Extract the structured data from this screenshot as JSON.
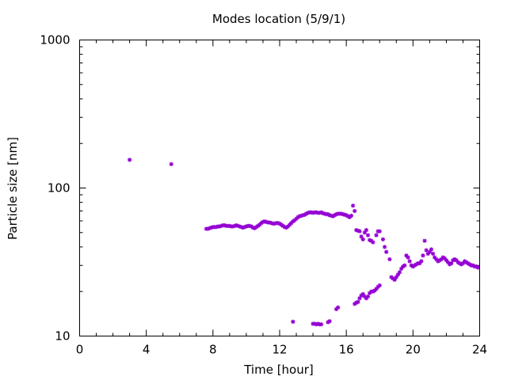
{
  "chart_data": {
    "type": "scatter",
    "title": "Modes location (5/9/1)",
    "xlabel": "Time [hour]",
    "ylabel": "Particle size [nm]",
    "xlim": [
      0,
      24
    ],
    "ylim": [
      10,
      1000
    ],
    "yscale": "log",
    "grid": false,
    "legend": "none",
    "x_ticks": [
      0,
      4,
      8,
      12,
      16,
      20,
      24
    ],
    "x_tick_labels": [
      "0",
      "4",
      "8",
      "12",
      "16",
      "20",
      "24"
    ],
    "y_ticks": [
      10,
      100,
      1000
    ],
    "y_tick_labels": [
      "10",
      "100",
      "1000"
    ],
    "marker_color": "#9400d3",
    "series": [
      {
        "x": [
          3.0,
          5.5,
          7.6,
          7.7,
          7.8,
          7.9,
          8.0,
          8.1,
          8.2,
          8.3,
          8.4,
          8.5,
          8.6,
          8.7,
          8.8,
          8.9,
          9.0,
          9.1,
          9.2,
          9.3,
          9.4,
          9.5,
          9.6,
          9.7,
          9.8,
          9.9,
          10.0,
          10.1,
          10.2,
          10.3,
          10.4,
          10.5,
          10.6,
          10.7,
          10.8,
          10.9,
          11.0,
          11.1,
          11.2,
          11.3,
          11.4,
          11.5,
          11.6,
          11.7,
          11.8,
          11.9,
          12.0,
          12.1,
          12.2,
          12.3,
          12.4,
          12.5,
          12.6,
          12.7,
          12.8,
          12.9,
          13.0,
          13.1,
          13.2,
          13.3,
          13.4,
          13.5,
          13.6,
          13.7,
          13.8,
          13.9,
          14.0,
          14.1,
          14.2,
          14.3,
          14.4,
          14.5,
          14.6,
          14.7,
          14.8,
          14.9,
          15.0,
          15.1,
          15.2,
          15.3,
          15.4,
          15.5,
          15.6,
          15.7,
          15.8,
          15.9,
          16.0,
          16.1,
          16.2,
          16.3,
          16.4,
          16.5,
          16.6,
          16.7,
          16.8,
          16.9,
          17.0,
          17.1,
          17.2,
          17.3,
          17.4,
          17.5,
          17.6,
          17.8,
          17.9,
          18.0,
          18.2,
          18.3,
          18.4,
          18.6,
          18.7,
          18.8,
          18.9,
          19.0,
          19.1,
          19.2,
          19.3,
          19.4,
          19.5,
          19.6,
          19.7,
          19.8,
          19.9,
          20.0,
          20.1,
          20.2,
          20.3,
          20.4,
          20.5,
          20.6,
          20.7,
          20.8,
          20.9,
          21.0,
          21.1,
          21.2,
          21.3,
          21.4,
          21.5,
          21.6,
          21.7,
          21.8,
          21.9,
          22.0,
          22.1,
          22.2,
          22.3,
          22.4,
          22.5,
          22.6,
          22.7,
          22.8,
          22.9,
          23.0,
          23.1,
          23.2,
          23.3,
          23.4,
          23.5,
          23.6,
          23.7,
          23.8,
          23.9,
          12.8,
          14.0,
          14.1,
          14.2,
          14.3,
          14.4,
          14.5,
          14.9,
          15.0,
          15.4,
          15.5,
          16.5,
          16.6,
          16.7,
          16.8,
          16.9,
          17.0,
          17.1,
          17.2,
          17.3,
          17.4,
          17.5,
          17.6,
          17.7,
          17.8,
          17.9,
          18.0
        ],
        "y": [
          155,
          145,
          53,
          53,
          53.5,
          54,
          54.5,
          54.5,
          54.5,
          55,
          55,
          55.5,
          56,
          56,
          55.5,
          55.5,
          55.5,
          55,
          55,
          55.5,
          56,
          55.5,
          55,
          54.5,
          54,
          54.5,
          55,
          55.5,
          55.5,
          55,
          54,
          53.5,
          54.5,
          55.5,
          56.5,
          58,
          59,
          59.5,
          59,
          58.5,
          58.5,
          58,
          57.5,
          57.5,
          58,
          58,
          57.5,
          56.5,
          55.5,
          54.5,
          54,
          55,
          56.5,
          58,
          59.5,
          60.5,
          62,
          63.5,
          64.5,
          65,
          65.5,
          66,
          67,
          68,
          68.5,
          68.5,
          68,
          68.5,
          68.5,
          68,
          68,
          68.5,
          67.5,
          67,
          66.5,
          66.5,
          65.5,
          65,
          64.5,
          65.5,
          66.5,
          67,
          67,
          67,
          66.5,
          66,
          65.5,
          64.5,
          63.5,
          65,
          76,
          70,
          52,
          51.5,
          51,
          47,
          45,
          50,
          52,
          48,
          44.5,
          44,
          43,
          48,
          51,
          51,
          45,
          40,
          37,
          33,
          25,
          24.5,
          24,
          25,
          26,
          27,
          28.5,
          29.5,
          30,
          35,
          34,
          32,
          30,
          29.5,
          30,
          30.5,
          31,
          31,
          32,
          35,
          44,
          38,
          36,
          37,
          38.5,
          36,
          34,
          33,
          32,
          32.5,
          33,
          34,
          33.5,
          32.5,
          31.5,
          30.5,
          31,
          32.5,
          33,
          32.5,
          31.5,
          31,
          30.5,
          31,
          32,
          31.5,
          31,
          30.5,
          30,
          30,
          29.5,
          29.5,
          29,
          12.5,
          12.1,
          12.1,
          12.0,
          12.1,
          12.0,
          12.0,
          12.4,
          12.6,
          15.2,
          15.6,
          16.5,
          16.8,
          17.0,
          18.0,
          18.8,
          19.2,
          18.5,
          18.0,
          18.5,
          19.5,
          20.0,
          20.0,
          20.3,
          20.8,
          21.5,
          22.0
        ]
      }
    ]
  }
}
